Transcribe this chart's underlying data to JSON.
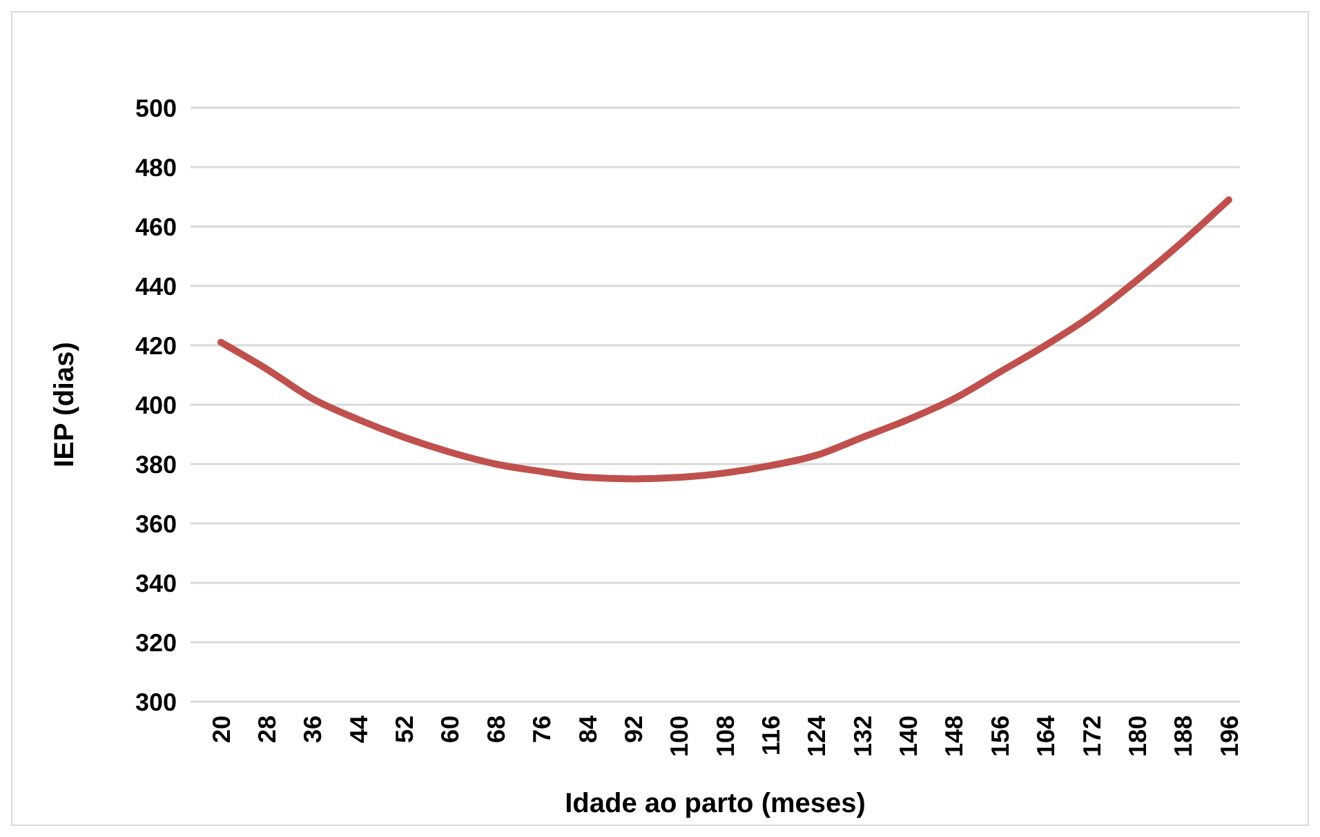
{
  "chart_data": {
    "type": "line",
    "xlabel": "Idade ao parto (meses)",
    "ylabel": "IEP (dias)",
    "categories": [
      "20",
      "28",
      "36",
      "44",
      "52",
      "60",
      "68",
      "76",
      "84",
      "92",
      "100",
      "108",
      "116",
      "124",
      "132",
      "140",
      "148",
      "156",
      "164",
      "172",
      "180",
      "188",
      "196"
    ],
    "series": [
      {
        "color": "#c0504d",
        "values": [
          421,
          412,
          402,
          395,
          389,
          384,
          380,
          377.5,
          375.5,
          375,
          375.5,
          377,
          379.5,
          383,
          389,
          395,
          402,
          411,
          420,
          430,
          442,
          455,
          469
        ]
      }
    ],
    "ylim": [
      300,
      500
    ],
    "yticks": [
      300,
      320,
      340,
      360,
      380,
      400,
      420,
      440,
      460,
      480,
      500
    ],
    "grid": "y",
    "marker": "none",
    "line_style": "solid"
  }
}
